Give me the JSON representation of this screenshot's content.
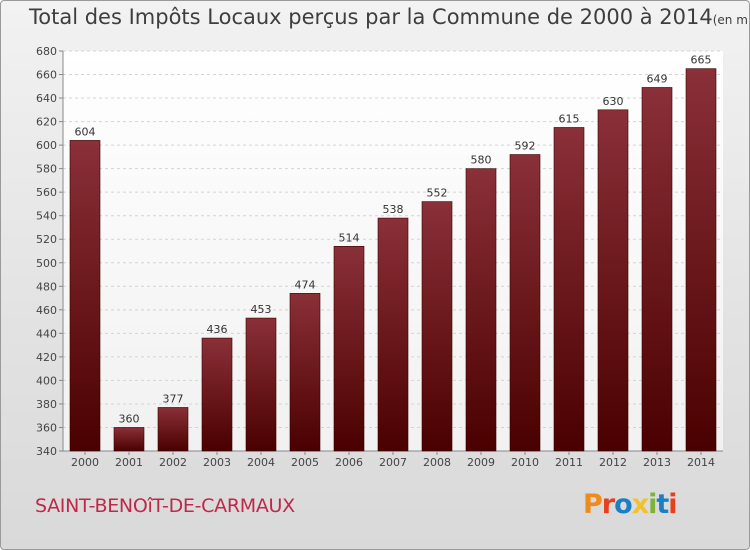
{
  "title": "Total des Impôts Locaux perçus par la Commune de 2000 à 2014",
  "unit_note": "(en milliers d'€)",
  "commune": "SAINT-BENOîT-DE-CARMAUX",
  "brand": {
    "letters": [
      "P",
      "r",
      "o",
      "x",
      "i",
      "t",
      "i"
    ],
    "colors": [
      "#f08a18",
      "#e8401e",
      "#1a7fc4",
      "#f2c12e",
      "#7fb239",
      "#1a7fc4",
      "#e8401e"
    ]
  },
  "chart_data": {
    "type": "bar",
    "title": "Total des Impôts Locaux perçus par la Commune de 2000 à 2014",
    "xlabel": "",
    "ylabel": "",
    "categories": [
      "2000",
      "2001",
      "2002",
      "2003",
      "2004",
      "2005",
      "2006",
      "2007",
      "2008",
      "2009",
      "2010",
      "2011",
      "2012",
      "2013",
      "2014"
    ],
    "values": [
      604,
      360,
      377,
      436,
      453,
      474,
      514,
      538,
      552,
      580,
      592,
      615,
      630,
      649,
      665
    ],
    "ylim": [
      340,
      680
    ],
    "yticks": [
      340,
      360,
      380,
      400,
      420,
      440,
      460,
      480,
      500,
      520,
      540,
      560,
      580,
      600,
      620,
      640,
      660,
      680
    ],
    "grid": true,
    "bar_color_top": "#8a3038",
    "bar_color_bottom": "#4a0000"
  }
}
